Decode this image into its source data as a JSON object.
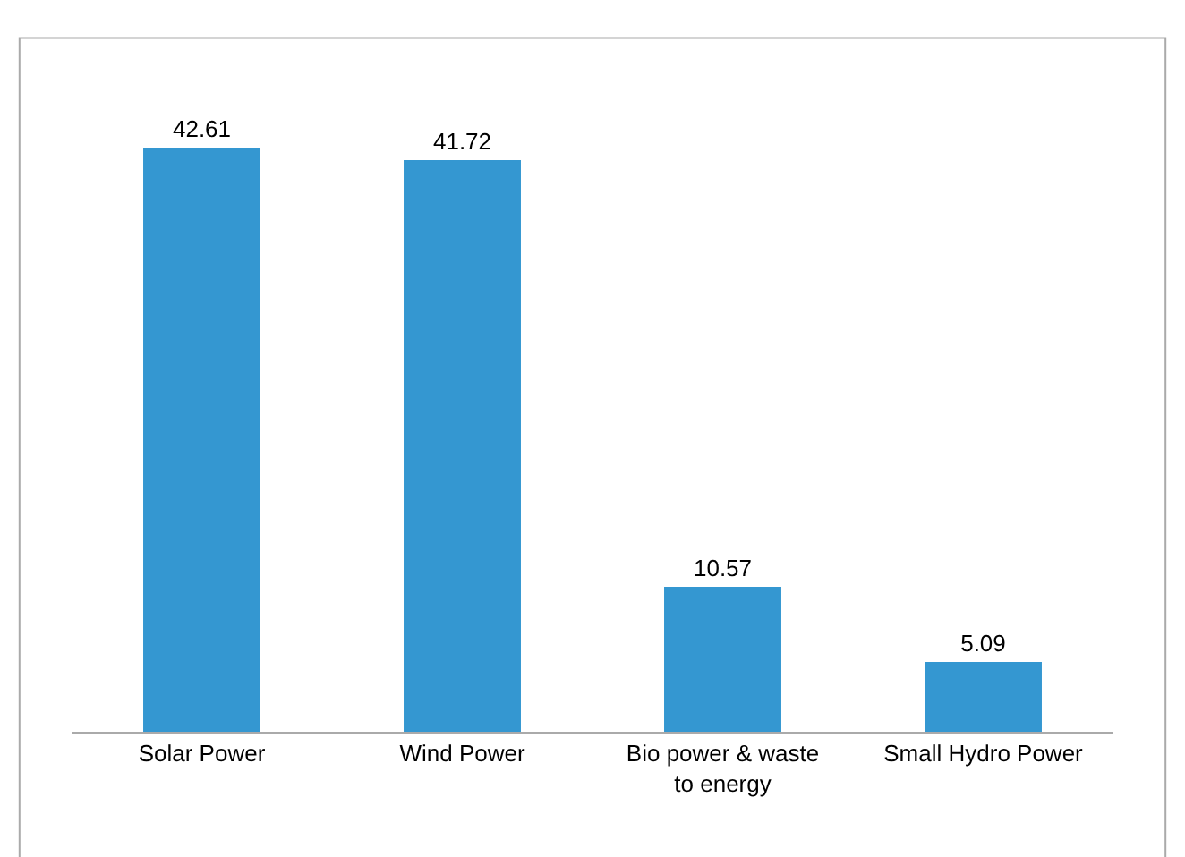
{
  "chart_data": {
    "type": "bar",
    "categories": [
      "Solar Power",
      "Wind Power",
      "Bio power & waste to energy",
      "Small Hydro Power"
    ],
    "values": [
      42.61,
      41.72,
      10.57,
      5.09
    ],
    "color": "#3497d1",
    "data_labels": true
  }
}
